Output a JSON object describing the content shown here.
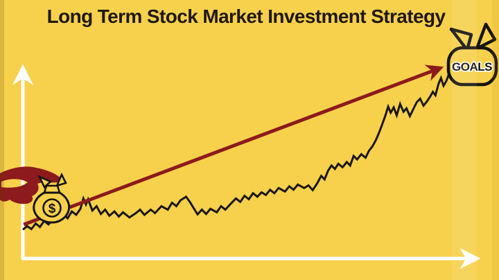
{
  "title": "Long Term Stock Market Investment Strategy",
  "annotations": {
    "goal_bag_label": "GOALS",
    "money_bag_symbol": "$"
  },
  "colors": {
    "background": "#F7D14C",
    "title_color": "#201813",
    "axis": "#FFFFFF",
    "stock_line": "#1A1715",
    "trend_arrow": "#8D1A1C",
    "hand": "#8D1A1C",
    "bag_outline": "#171310",
    "goal_text_fill": "#141008",
    "goal_text_stroke": "#FFFFFF"
  },
  "chart_data": {
    "type": "line",
    "title": "Long Term Stock Market Investment Strategy",
    "xlabel": "",
    "ylabel": "",
    "grid": false,
    "legend": false,
    "x_range": [
      0,
      100
    ],
    "y_range": [
      0,
      110
    ],
    "axes_style": "white arrows, unlabeled conceptual axes",
    "series": [
      {
        "name": "stock-price",
        "style": "jagged black line",
        "points": [
          [
            0,
            7.5
          ],
          [
            1,
            9.5
          ],
          [
            2,
            7.8
          ],
          [
            3,
            11
          ],
          [
            4,
            9
          ],
          [
            5,
            12.5
          ],
          [
            6,
            10.5
          ],
          [
            7.5,
            14.5
          ],
          [
            8.5,
            12.5
          ],
          [
            9.5,
            16.5
          ],
          [
            10.5,
            14
          ],
          [
            11.5,
            18
          ],
          [
            12.5,
            16
          ],
          [
            13.5,
            19.5
          ],
          [
            14.2,
            25.5
          ],
          [
            14.8,
            22
          ],
          [
            15.3,
            25
          ],
          [
            16.3,
            18.5
          ],
          [
            17.3,
            21
          ],
          [
            18.3,
            16.5
          ],
          [
            19.3,
            19
          ],
          [
            20.3,
            15.5
          ],
          [
            21.5,
            18
          ],
          [
            22.5,
            15
          ],
          [
            23.5,
            17.5
          ],
          [
            25,
            14.5
          ],
          [
            26.5,
            17
          ],
          [
            27.5,
            19
          ],
          [
            28.5,
            16
          ],
          [
            30,
            19
          ],
          [
            31,
            17
          ],
          [
            32.5,
            21
          ],
          [
            34,
            19
          ],
          [
            35,
            23
          ],
          [
            36,
            21
          ],
          [
            37,
            24.5
          ],
          [
            38.3,
            26.5
          ],
          [
            39.3,
            23
          ],
          [
            40.3,
            19
          ],
          [
            41,
            16.3
          ],
          [
            42,
            19
          ],
          [
            43,
            16.5
          ],
          [
            44,
            19.5
          ],
          [
            45.5,
            17.5
          ],
          [
            46.5,
            21
          ],
          [
            47.5,
            19
          ],
          [
            48.8,
            22.5
          ],
          [
            50,
            25.5
          ],
          [
            51,
            23.5
          ],
          [
            52,
            27
          ],
          [
            53,
            25
          ],
          [
            54,
            28.5
          ],
          [
            55,
            26.5
          ],
          [
            56,
            29
          ],
          [
            57,
            27.5
          ],
          [
            58,
            30.5
          ],
          [
            59,
            28.5
          ],
          [
            60,
            31.5
          ],
          [
            61.5,
            29.5
          ],
          [
            62.5,
            32.5
          ],
          [
            63.5,
            30.5
          ],
          [
            64.5,
            33.5
          ],
          [
            66,
            31.5
          ],
          [
            67,
            33
          ],
          [
            68,
            30.3
          ],
          [
            69,
            34
          ],
          [
            70,
            38.5
          ],
          [
            70.8,
            36.5
          ],
          [
            71.6,
            41.5
          ],
          [
            72.4,
            44.5
          ],
          [
            73.2,
            42.5
          ],
          [
            74,
            45.5
          ],
          [
            75,
            43.5
          ],
          [
            76,
            46.5
          ],
          [
            76.8,
            44.5
          ],
          [
            77.6,
            50
          ],
          [
            78.4,
            48
          ],
          [
            79.4,
            51
          ],
          [
            80.4,
            49
          ],
          [
            81.2,
            53
          ],
          [
            82,
            55.5
          ],
          [
            82.8,
            59
          ],
          [
            83.5,
            63
          ],
          [
            84.2,
            67.5
          ],
          [
            85,
            73
          ],
          [
            85.7,
            78.5
          ],
          [
            86.3,
            75
          ],
          [
            87,
            78
          ],
          [
            87.7,
            73.5
          ],
          [
            88.5,
            80
          ],
          [
            89.3,
            75.5
          ],
          [
            90,
            77.5
          ],
          [
            90.8,
            73
          ],
          [
            91.6,
            77
          ],
          [
            92.4,
            81
          ],
          [
            93.2,
            83
          ],
          [
            94,
            79
          ],
          [
            94.8,
            81.5
          ],
          [
            95.5,
            84
          ],
          [
            96.2,
            87
          ],
          [
            96.8,
            85
          ],
          [
            97.5,
            91.5
          ],
          [
            98.1,
            95
          ],
          [
            98.7,
            90.5
          ],
          [
            99.3,
            93
          ],
          [
            100,
            97.5
          ]
        ]
      },
      {
        "name": "long-term-trend-arrow",
        "style": "straight dark-red arrow",
        "points": [
          [
            0.2,
            10.4
          ],
          [
            97.6,
            100.4
          ]
        ]
      }
    ],
    "annotations": [
      {
        "text": "$",
        "type": "money-bag",
        "at": [
          6.8,
          20.8
        ]
      },
      {
        "text": "GOALS",
        "type": "money-bag",
        "at": [
          105,
          101
        ]
      }
    ]
  }
}
